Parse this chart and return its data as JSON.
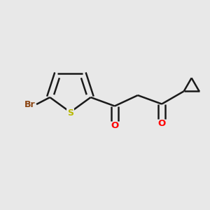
{
  "background_color": "#e8e8e8",
  "bond_color": "#1a1a1a",
  "br_color": "#8B4513",
  "s_color": "#b8b800",
  "o_color": "#ff0000",
  "line_width": 1.8,
  "figsize": [
    3.0,
    3.0
  ],
  "dpi": 100,
  "xlim": [
    0,
    10
  ],
  "ylim": [
    0,
    10
  ]
}
